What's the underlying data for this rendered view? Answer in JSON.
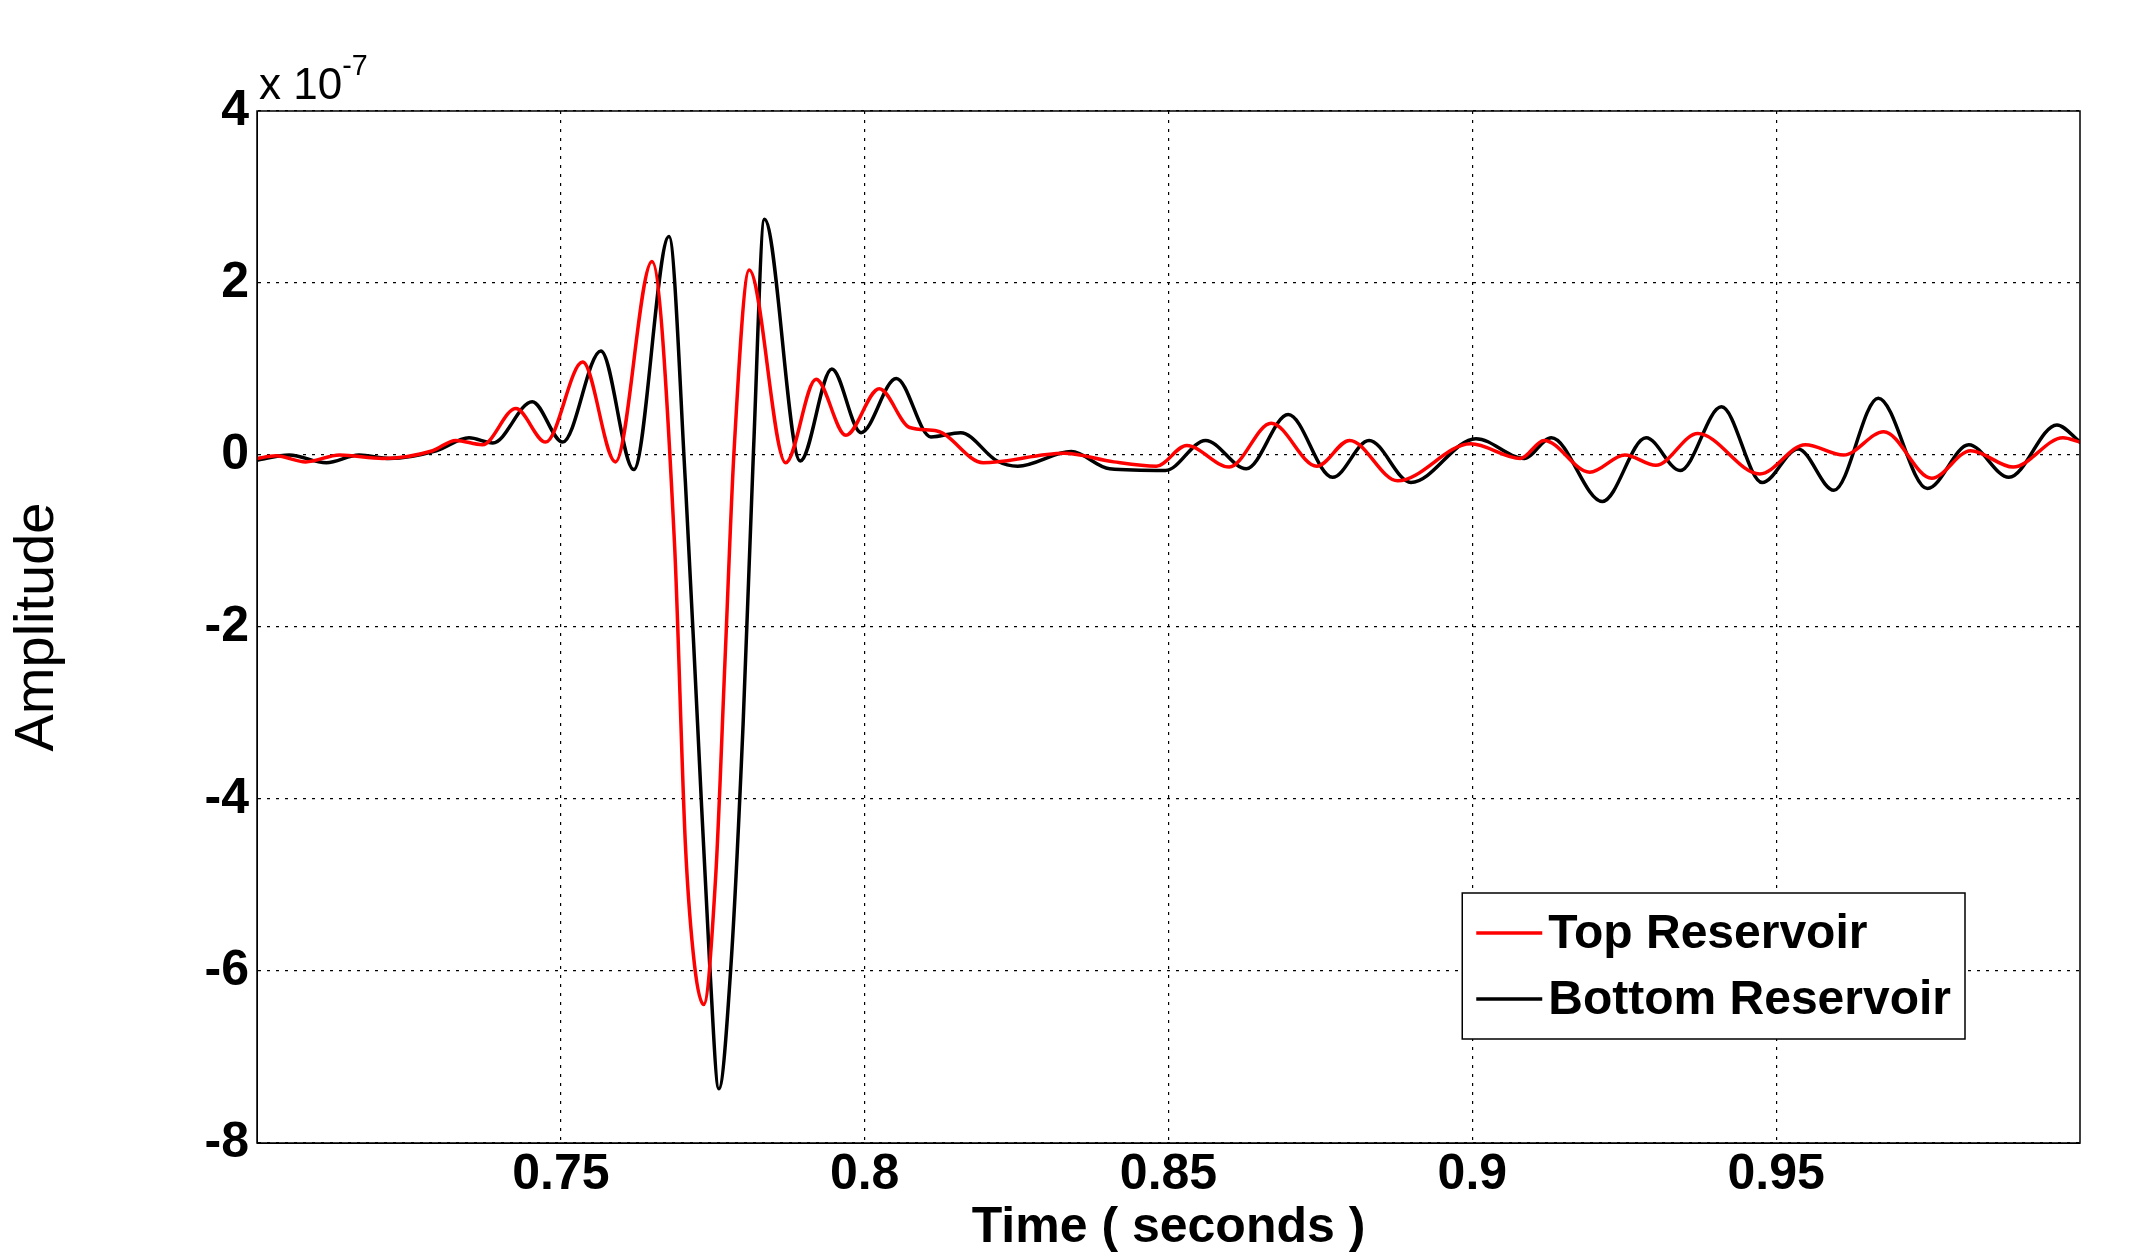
{
  "chart_data": {
    "type": "line",
    "xlabel": "Time ( seconds )",
    "ylabel": "Amplitude",
    "annotations": [
      "x 10$^{-7}$"
    ],
    "xlim": [
      0.7,
      1.0
    ],
    "xticks": [
      0.75,
      0.8,
      0.85,
      0.9,
      0.95
    ],
    "ylim": [
      -8,
      4
    ],
    "yticks": [
      -8,
      -6,
      -4,
      -2,
      0,
      2,
      4
    ],
    "grid": true,
    "legend": "bottom right",
    "line_style": "solid",
    "marker": "none",
    "series": [
      {
        "name": "Top Reservoir",
        "color": "#ff0000",
        "x": [
          0.7,
          0.7031,
          0.708,
          0.7136,
          0.7207,
          0.7289,
          0.7327,
          0.7371,
          0.7426,
          0.7475,
          0.7536,
          0.759,
          0.765,
          0.7687,
          0.7705,
          0.772,
          0.7735,
          0.7755,
          0.777,
          0.7785,
          0.781,
          0.787,
          0.792,
          0.7969,
          0.8024,
          0.8074,
          0.8119,
          0.8195,
          0.8328,
          0.841,
          0.848,
          0.853,
          0.86,
          0.8669,
          0.8744,
          0.8798,
          0.8877,
          0.8997,
          0.9079,
          0.9118,
          0.9193,
          0.9251,
          0.9302,
          0.9371,
          0.9473,
          0.9548,
          0.9611,
          0.9677,
          0.9756,
          0.982,
          0.989,
          0.9972,
          1.0
        ],
        "values": [
          -0.04,
          -0.01,
          -0.08,
          0,
          -0.04,
          0.05,
          0.17,
          0.12,
          0.54,
          0.15,
          1.08,
          -0.08,
          2.25,
          -1.02,
          -4.53,
          -5.93,
          -6.39,
          -4.88,
          -2.42,
          0.04,
          2.15,
          -0.09,
          0.88,
          0.23,
          0.77,
          0.32,
          0.28,
          -0.09,
          0.02,
          -0.08,
          -0.13,
          0.11,
          -0.14,
          0.37,
          -0.13,
          0.17,
          -0.3,
          0.13,
          -0.04,
          0.17,
          -0.2,
          0,
          -0.12,
          0.25,
          -0.22,
          0.12,
          0,
          0.27,
          -0.27,
          0.05,
          -0.14,
          0.2,
          0.15
        ]
      },
      {
        "name": "Bottom Reservoir",
        "color": "#000000",
        "x": [
          0.7,
          0.7053,
          0.7114,
          0.7168,
          0.7218,
          0.7295,
          0.7349,
          0.7388,
          0.7453,
          0.7503,
          0.7566,
          0.762,
          0.7678,
          0.7705,
          0.7725,
          0.7745,
          0.776,
          0.778,
          0.78,
          0.7817,
          0.7835,
          0.7894,
          0.7946,
          0.7994,
          0.8052,
          0.8109,
          0.8158,
          0.8218,
          0.8252,
          0.834,
          0.8403,
          0.8495,
          0.8561,
          0.8628,
          0.8697,
          0.877,
          0.883,
          0.8899,
          0.9006,
          0.9085,
          0.913,
          0.9214,
          0.9286,
          0.9342,
          0.941,
          0.9477,
          0.9536,
          0.9595,
          0.9668,
          0.9749,
          0.9817,
          0.9883,
          0.9962,
          1.0
        ],
        "values": [
          -0.06,
          0,
          -0.09,
          0,
          -0.04,
          0.05,
          0.2,
          0.14,
          0.62,
          0.15,
          1.21,
          -0.17,
          2.54,
          -0.32,
          -3.12,
          -5.93,
          -7.37,
          -5.93,
          -3.12,
          0.04,
          2.74,
          -0.07,
          1.0,
          0.26,
          0.89,
          0.21,
          0.26,
          -0.07,
          -0.13,
          0.04,
          -0.16,
          -0.18,
          0.17,
          -0.16,
          0.47,
          -0.26,
          0.17,
          -0.32,
          0.19,
          -0.04,
          0.2,
          -0.54,
          0.2,
          -0.18,
          0.56,
          -0.32,
          0.07,
          -0.41,
          0.66,
          -0.39,
          0.12,
          -0.26,
          0.35,
          0.15
        ]
      }
    ]
  }
}
